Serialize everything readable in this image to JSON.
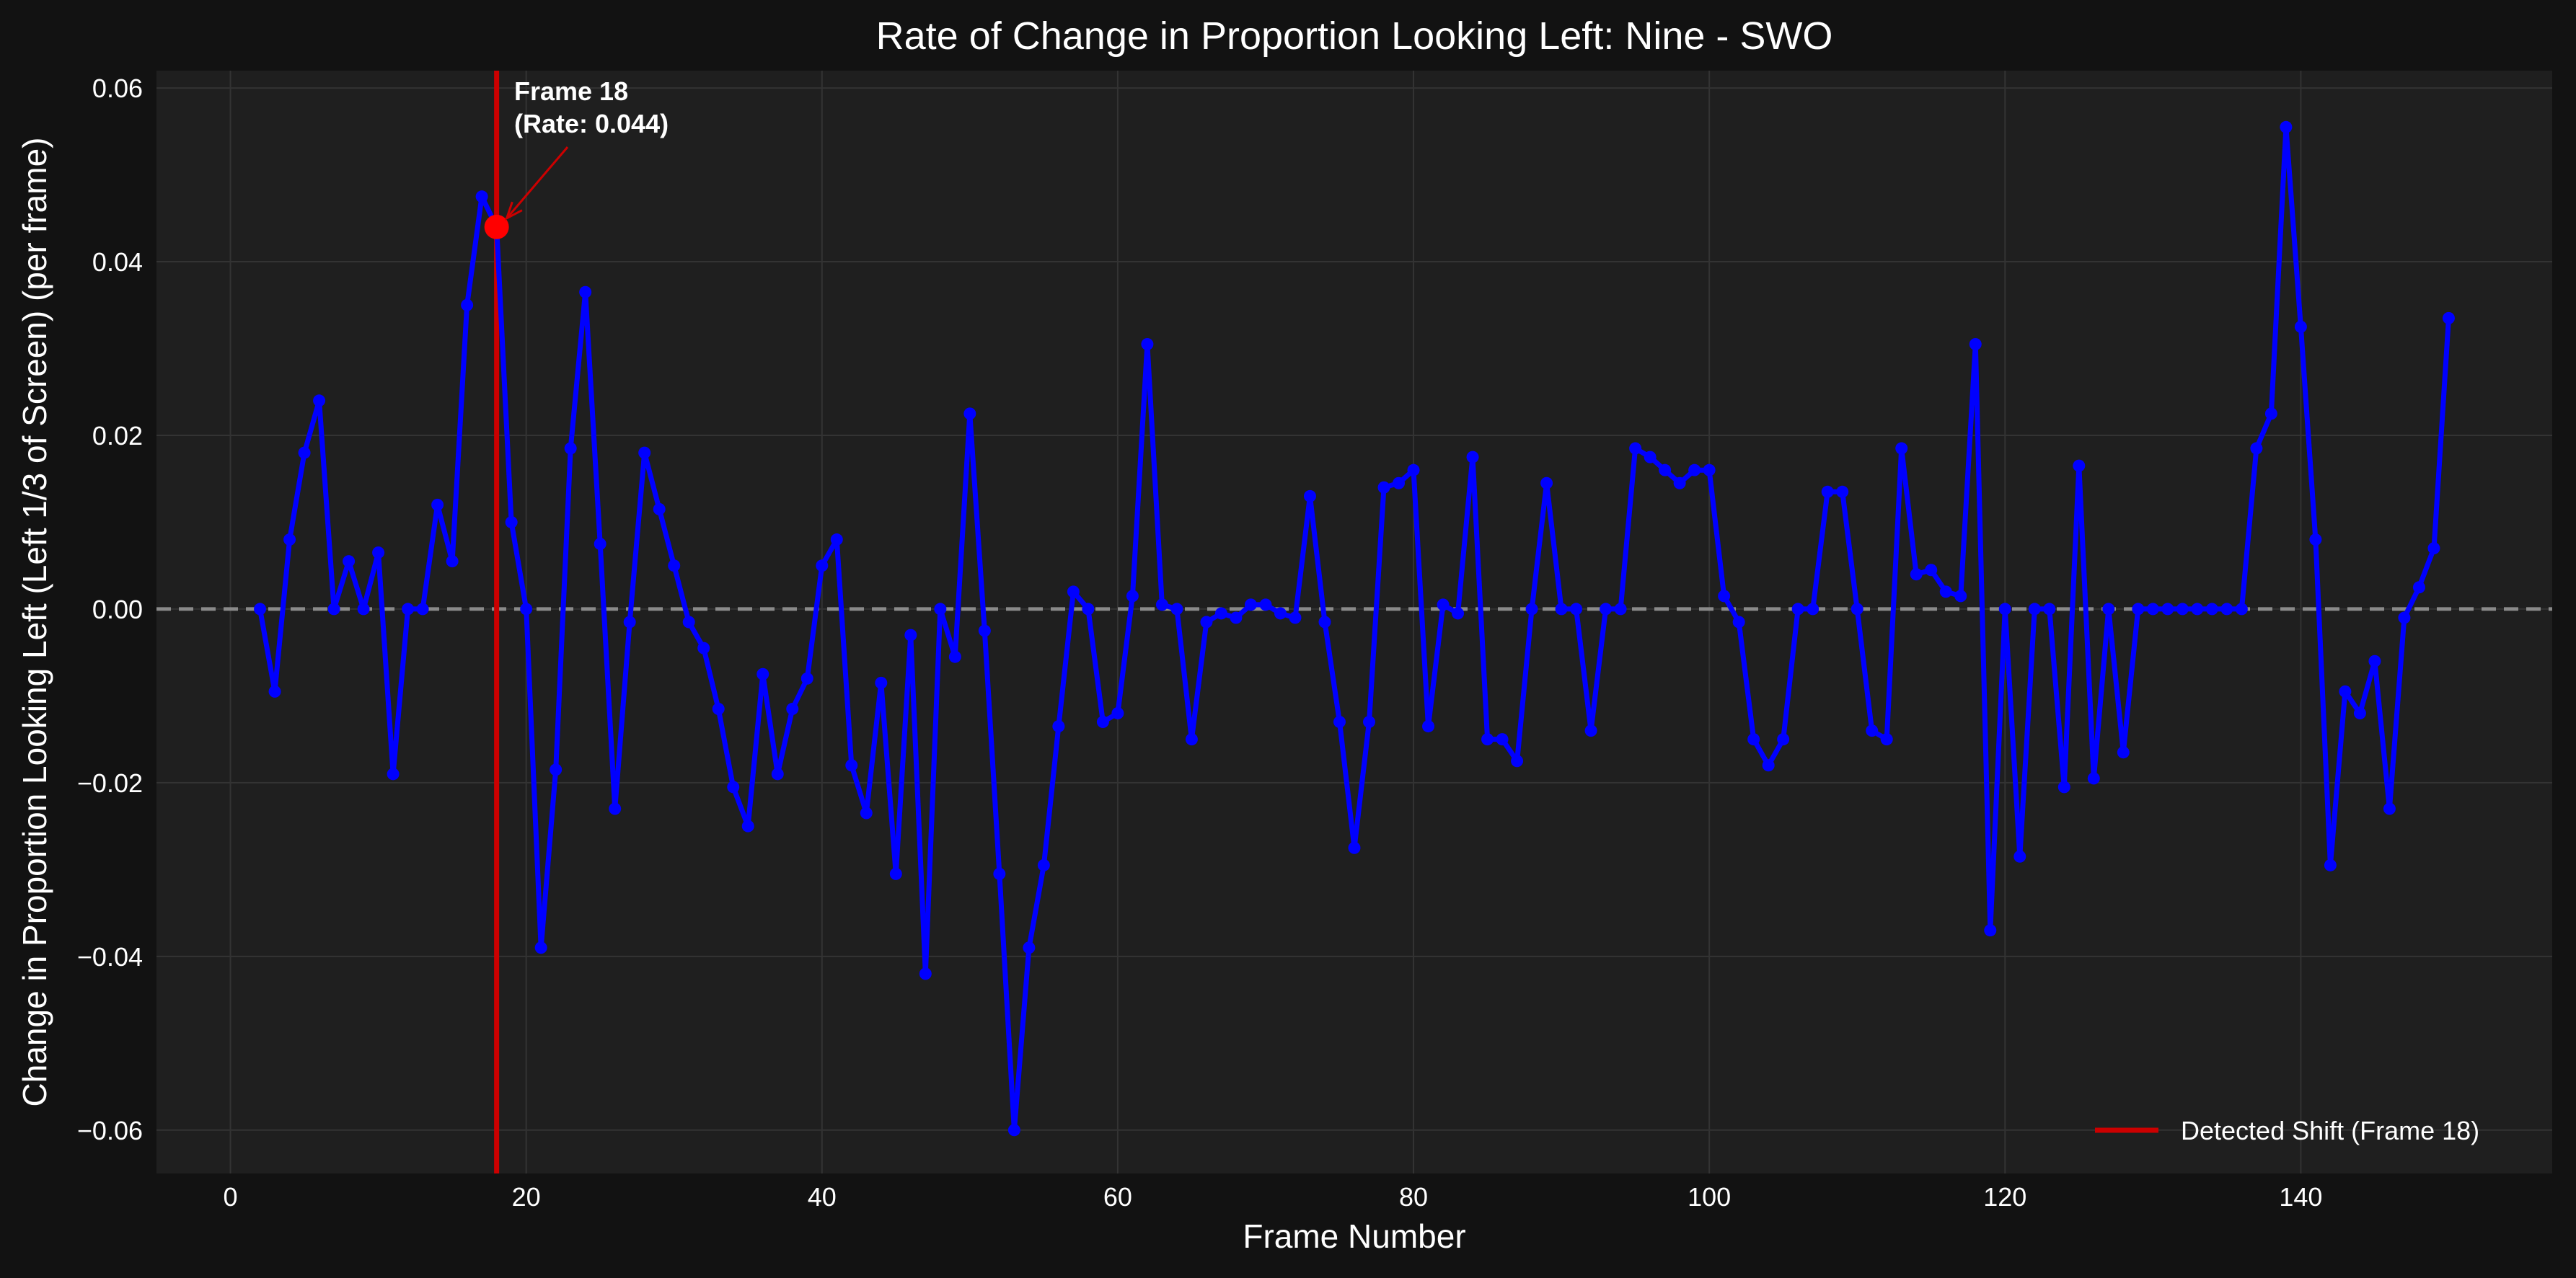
{
  "chart_data": {
    "type": "line",
    "title": "Rate of Change in Proportion Looking Left: Nine - SWO",
    "xlabel": "Frame Number",
    "ylabel": "Change in Proportion Looking Left (Left 1/3 of Screen) (per frame)",
    "xlim": [
      -5,
      157
    ],
    "ylim": [
      -0.065,
      0.062
    ],
    "xticks": [
      0,
      20,
      40,
      60,
      80,
      100,
      120,
      140
    ],
    "xtick_labels": [
      "0",
      "20",
      "40",
      "60",
      "80",
      "100",
      "120",
      "140"
    ],
    "yticks": [
      -0.06,
      -0.04,
      -0.02,
      0.0,
      0.02,
      0.04,
      0.06
    ],
    "ytick_labels": [
      "−0.06",
      "−0.04",
      "−0.02",
      "0.00",
      "0.02",
      "0.04",
      "0.06"
    ],
    "grid": true,
    "legend_position": "bottom-right",
    "colors": {
      "background": "#121212",
      "plot_background": "#1f1f1f",
      "grid": "#333333",
      "series": "#0000ff",
      "shift": "#cc0000",
      "highlight": "#ff0000",
      "zero_line": "#8a8a8a",
      "text": "#ffffff"
    },
    "series": [
      {
        "x": [
          2,
          3,
          4,
          5,
          6,
          7,
          8,
          9,
          10,
          11,
          12,
          13,
          14,
          15,
          16,
          17,
          18,
          19,
          20,
          21,
          22,
          23,
          24,
          25,
          26,
          27,
          28,
          29,
          30,
          31,
          32,
          33,
          34,
          35,
          36,
          37,
          38,
          39,
          40,
          41,
          42,
          43,
          44,
          45,
          46,
          47,
          48,
          49,
          50,
          51,
          52,
          53,
          54,
          55,
          56,
          57,
          58,
          59,
          60,
          61,
          62,
          63,
          64,
          65,
          66,
          67,
          68,
          69,
          70,
          71,
          72,
          73,
          74,
          75,
          76,
          77,
          78,
          79,
          80,
          81,
          82,
          83,
          84,
          85,
          86,
          87,
          88,
          89,
          90,
          91,
          92,
          93,
          94,
          95,
          96,
          97,
          98,
          99,
          100,
          101,
          102,
          103,
          104,
          105,
          106,
          107,
          108,
          109,
          110,
          111,
          112,
          113,
          114,
          115,
          116,
          117,
          118,
          119,
          120,
          121,
          122,
          123,
          124,
          125,
          126,
          127,
          128,
          129,
          130,
          131,
          132,
          133,
          134,
          135,
          136,
          137,
          138,
          139,
          140,
          141,
          142,
          143,
          144,
          145,
          146,
          147,
          148,
          149,
          150
        ],
        "y": [
          0,
          -0.0095,
          0.008,
          0.018,
          0.024,
          0,
          0.0055,
          0,
          0.0065,
          -0.019,
          0,
          0,
          0.012,
          0.0055,
          0.035,
          0.0475,
          0.044,
          0.01,
          0,
          -0.039,
          -0.0185,
          0.0185,
          0.0365,
          0.0075,
          -0.023,
          -0.0015,
          0.018,
          0.0115,
          0.005,
          -0.0015,
          -0.0045,
          -0.0115,
          -0.0205,
          -0.025,
          -0.0075,
          -0.019,
          -0.0115,
          -0.008,
          0.005,
          0.008,
          -0.018,
          -0.0235,
          -0.0085,
          -0.0305,
          -0.003,
          -0.042,
          0,
          -0.0055,
          0.0225,
          -0.0025,
          -0.0305,
          -0.06,
          -0.039,
          -0.0295,
          -0.0135,
          0.002,
          0,
          -0.013,
          -0.012,
          0.0015,
          0.0305,
          0.0005,
          0,
          -0.015,
          -0.0015,
          -0.0005,
          -0.001,
          0.0005,
          0.0005,
          -0.0005,
          -0.001,
          0.013,
          -0.0015,
          -0.013,
          -0.0275,
          -0.013,
          0.014,
          0.0145,
          0.016,
          -0.0135,
          0.0005,
          -0.0005,
          0.0175,
          -0.015,
          -0.015,
          -0.0175,
          0,
          0.0145,
          0,
          0,
          -0.014,
          0,
          0,
          0.0185,
          0.0175,
          0.016,
          0.0145,
          0.016,
          0.016,
          0.0015,
          -0.0015,
          -0.015,
          -0.018,
          -0.015,
          0,
          0,
          0.0135,
          0.0135,
          0,
          -0.014,
          -0.015,
          0.0185,
          0.004,
          0.0045,
          0.002,
          0.0015,
          0.0305,
          -0.037,
          0,
          -0.0285,
          0,
          0,
          -0.0205,
          0.0165,
          -0.0195,
          0,
          -0.0165,
          0,
          0,
          0,
          0,
          0,
          0,
          0,
          0,
          0.0185,
          0.0225,
          0.0555,
          0.0325,
          0.008,
          -0.0295,
          -0.0095,
          -0.012,
          -0.006,
          -0.023,
          -0.001,
          0.0025,
          0.007,
          0.0335
        ]
      }
    ],
    "reference_line": {
      "y": 0
    },
    "shift_line": {
      "x": 18
    },
    "highlight_point": {
      "x": 18,
      "y": 0.044
    },
    "annotation": {
      "line1": "Frame 18",
      "line2": "(Rate: 0.044)"
    },
    "legend": {
      "label": "Detected Shift (Frame 18)"
    }
  }
}
